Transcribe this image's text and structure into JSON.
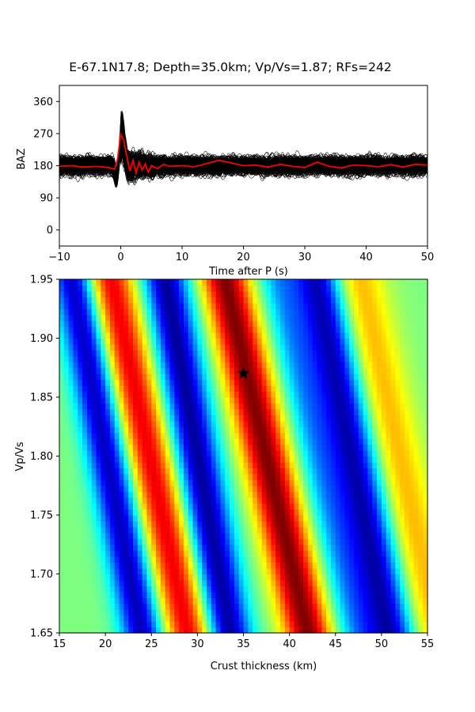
{
  "title": "E-67.1N17.8; Depth=35.0km; Vp/Vs=1.87; RFs=242",
  "chart_data": [
    {
      "type": "line",
      "panel": "receiver-functions",
      "xlabel": "Time after P (s)",
      "ylabel": "BAZ",
      "xlim": [
        -10,
        50
      ],
      "ylim": [
        -45,
        405
      ],
      "x_ticks": [
        -10,
        0,
        10,
        20,
        30,
        40,
        50
      ],
      "y_ticks": [
        0,
        90,
        180,
        270,
        360
      ],
      "trace_count": 242,
      "trace_color": "#000000",
      "stack_color": "#ff0000",
      "stack_baseline": 180,
      "stack": {
        "x": [
          -10,
          -8,
          -6,
          -4,
          -2,
          -1,
          -0.5,
          0,
          0.5,
          1,
          1.5,
          2,
          2.5,
          3,
          3.5,
          4,
          4.5,
          5,
          6,
          7,
          8,
          10,
          12,
          14,
          16,
          18,
          20,
          22,
          24,
          26,
          28,
          30,
          32,
          34,
          36,
          38,
          40,
          42,
          44,
          46,
          48,
          50
        ],
        "y": [
          178,
          180,
          176,
          178,
          175,
          170,
          200,
          268,
          250,
          205,
          165,
          195,
          160,
          190,
          168,
          185,
          162,
          180,
          172,
          184,
          178,
          180,
          177,
          186,
          195,
          188,
          180,
          182,
          176,
          184,
          178,
          175,
          190,
          178,
          174,
          182,
          180,
          177,
          183,
          176,
          184,
          182
        ]
      }
    },
    {
      "type": "heatmap",
      "panel": "h-k-stacking",
      "xlabel": "Crust thickness (km)",
      "ylabel": "Vp/Vs",
      "xlim": [
        15,
        55
      ],
      "ylim": [
        1.65,
        1.95
      ],
      "x_ticks": [
        15,
        20,
        25,
        30,
        35,
        40,
        45,
        50,
        55
      ],
      "y_ticks": [
        1.65,
        1.7,
        1.75,
        1.8,
        1.85,
        1.9,
        1.95
      ],
      "colormap": "jet",
      "best_fit": {
        "h": 35.0,
        "k": 1.87
      },
      "bands": [
        {
          "h_at_top": 16.5,
          "h_at_bottom": 24.0,
          "width": 1.6,
          "amp": -0.9
        },
        {
          "h_at_top": 20.5,
          "h_at_bottom": 29.0,
          "width": 1.8,
          "amp": 0.8
        },
        {
          "h_at_top": 26.5,
          "h_at_bottom": 33.5,
          "width": 1.7,
          "amp": -0.95
        },
        {
          "h_at_top": 33.0,
          "h_at_bottom": 42.0,
          "width": 1.8,
          "amp": 1.0
        },
        {
          "h_at_top": 39.0,
          "h_at_bottom": 47.5,
          "width": 1.6,
          "amp": -0.45
        },
        {
          "h_at_top": 43.0,
          "h_at_bottom": 51.0,
          "width": 1.8,
          "amp": -0.9
        },
        {
          "h_at_top": 47.5,
          "h_at_bottom": 56.0,
          "width": 2.0,
          "amp": 0.4
        }
      ]
    }
  ]
}
